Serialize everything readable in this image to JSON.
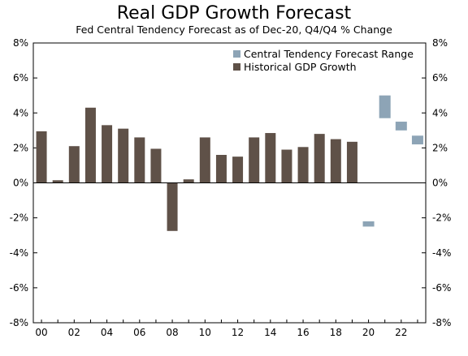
{
  "chart_data": {
    "type": "bar",
    "title": "Real GDP Growth Forecast",
    "subtitle": "Fed Central Tendency Forecast as of Dec-20, Q4/Q4 % Change",
    "ylim": [
      -8,
      8
    ],
    "yticks": [
      8,
      6,
      4,
      2,
      0,
      -2,
      -4,
      -6,
      -8
    ],
    "ytick_labels": [
      "8%",
      "6%",
      "4%",
      "2%",
      "0%",
      "-2%",
      "-4%",
      "-6%",
      "-8%"
    ],
    "xlim": [
      1999.5,
      2023.5
    ],
    "xtick_labels": [
      {
        "year": 2000,
        "label": "00"
      },
      {
        "year": 2002,
        "label": "02"
      },
      {
        "year": 2004,
        "label": "04"
      },
      {
        "year": 2006,
        "label": "06"
      },
      {
        "year": 2008,
        "label": "08"
      },
      {
        "year": 2010,
        "label": "10"
      },
      {
        "year": 2012,
        "label": "12"
      },
      {
        "year": 2014,
        "label": "14"
      },
      {
        "year": 2016,
        "label": "16"
      },
      {
        "year": 2018,
        "label": "18"
      },
      {
        "year": 2020,
        "label": "20"
      },
      {
        "year": 2022,
        "label": "22"
      }
    ],
    "grid": false,
    "legend_position": "top-right",
    "series": [
      {
        "name": "Central Tendency Forecast Range",
        "color": "#8da4b6",
        "kind": "range",
        "x": [
          2020,
          2021,
          2022,
          2023
        ],
        "low": [
          -2.5,
          3.7,
          3.0,
          2.2
        ],
        "high": [
          -2.2,
          5.0,
          3.5,
          2.7
        ]
      },
      {
        "name": "Historical GDP Growth",
        "color": "#5f5148",
        "kind": "bar",
        "x": [
          2000,
          2001,
          2002,
          2003,
          2004,
          2005,
          2006,
          2007,
          2008,
          2009,
          2010,
          2011,
          2012,
          2013,
          2014,
          2015,
          2016,
          2017,
          2018,
          2019
        ],
        "values": [
          2.95,
          0.15,
          2.1,
          4.3,
          3.3,
          3.1,
          2.6,
          1.95,
          -2.75,
          0.2,
          2.6,
          1.6,
          1.5,
          2.6,
          2.85,
          1.9,
          2.05,
          2.8,
          2.5,
          2.35
        ]
      }
    ]
  }
}
